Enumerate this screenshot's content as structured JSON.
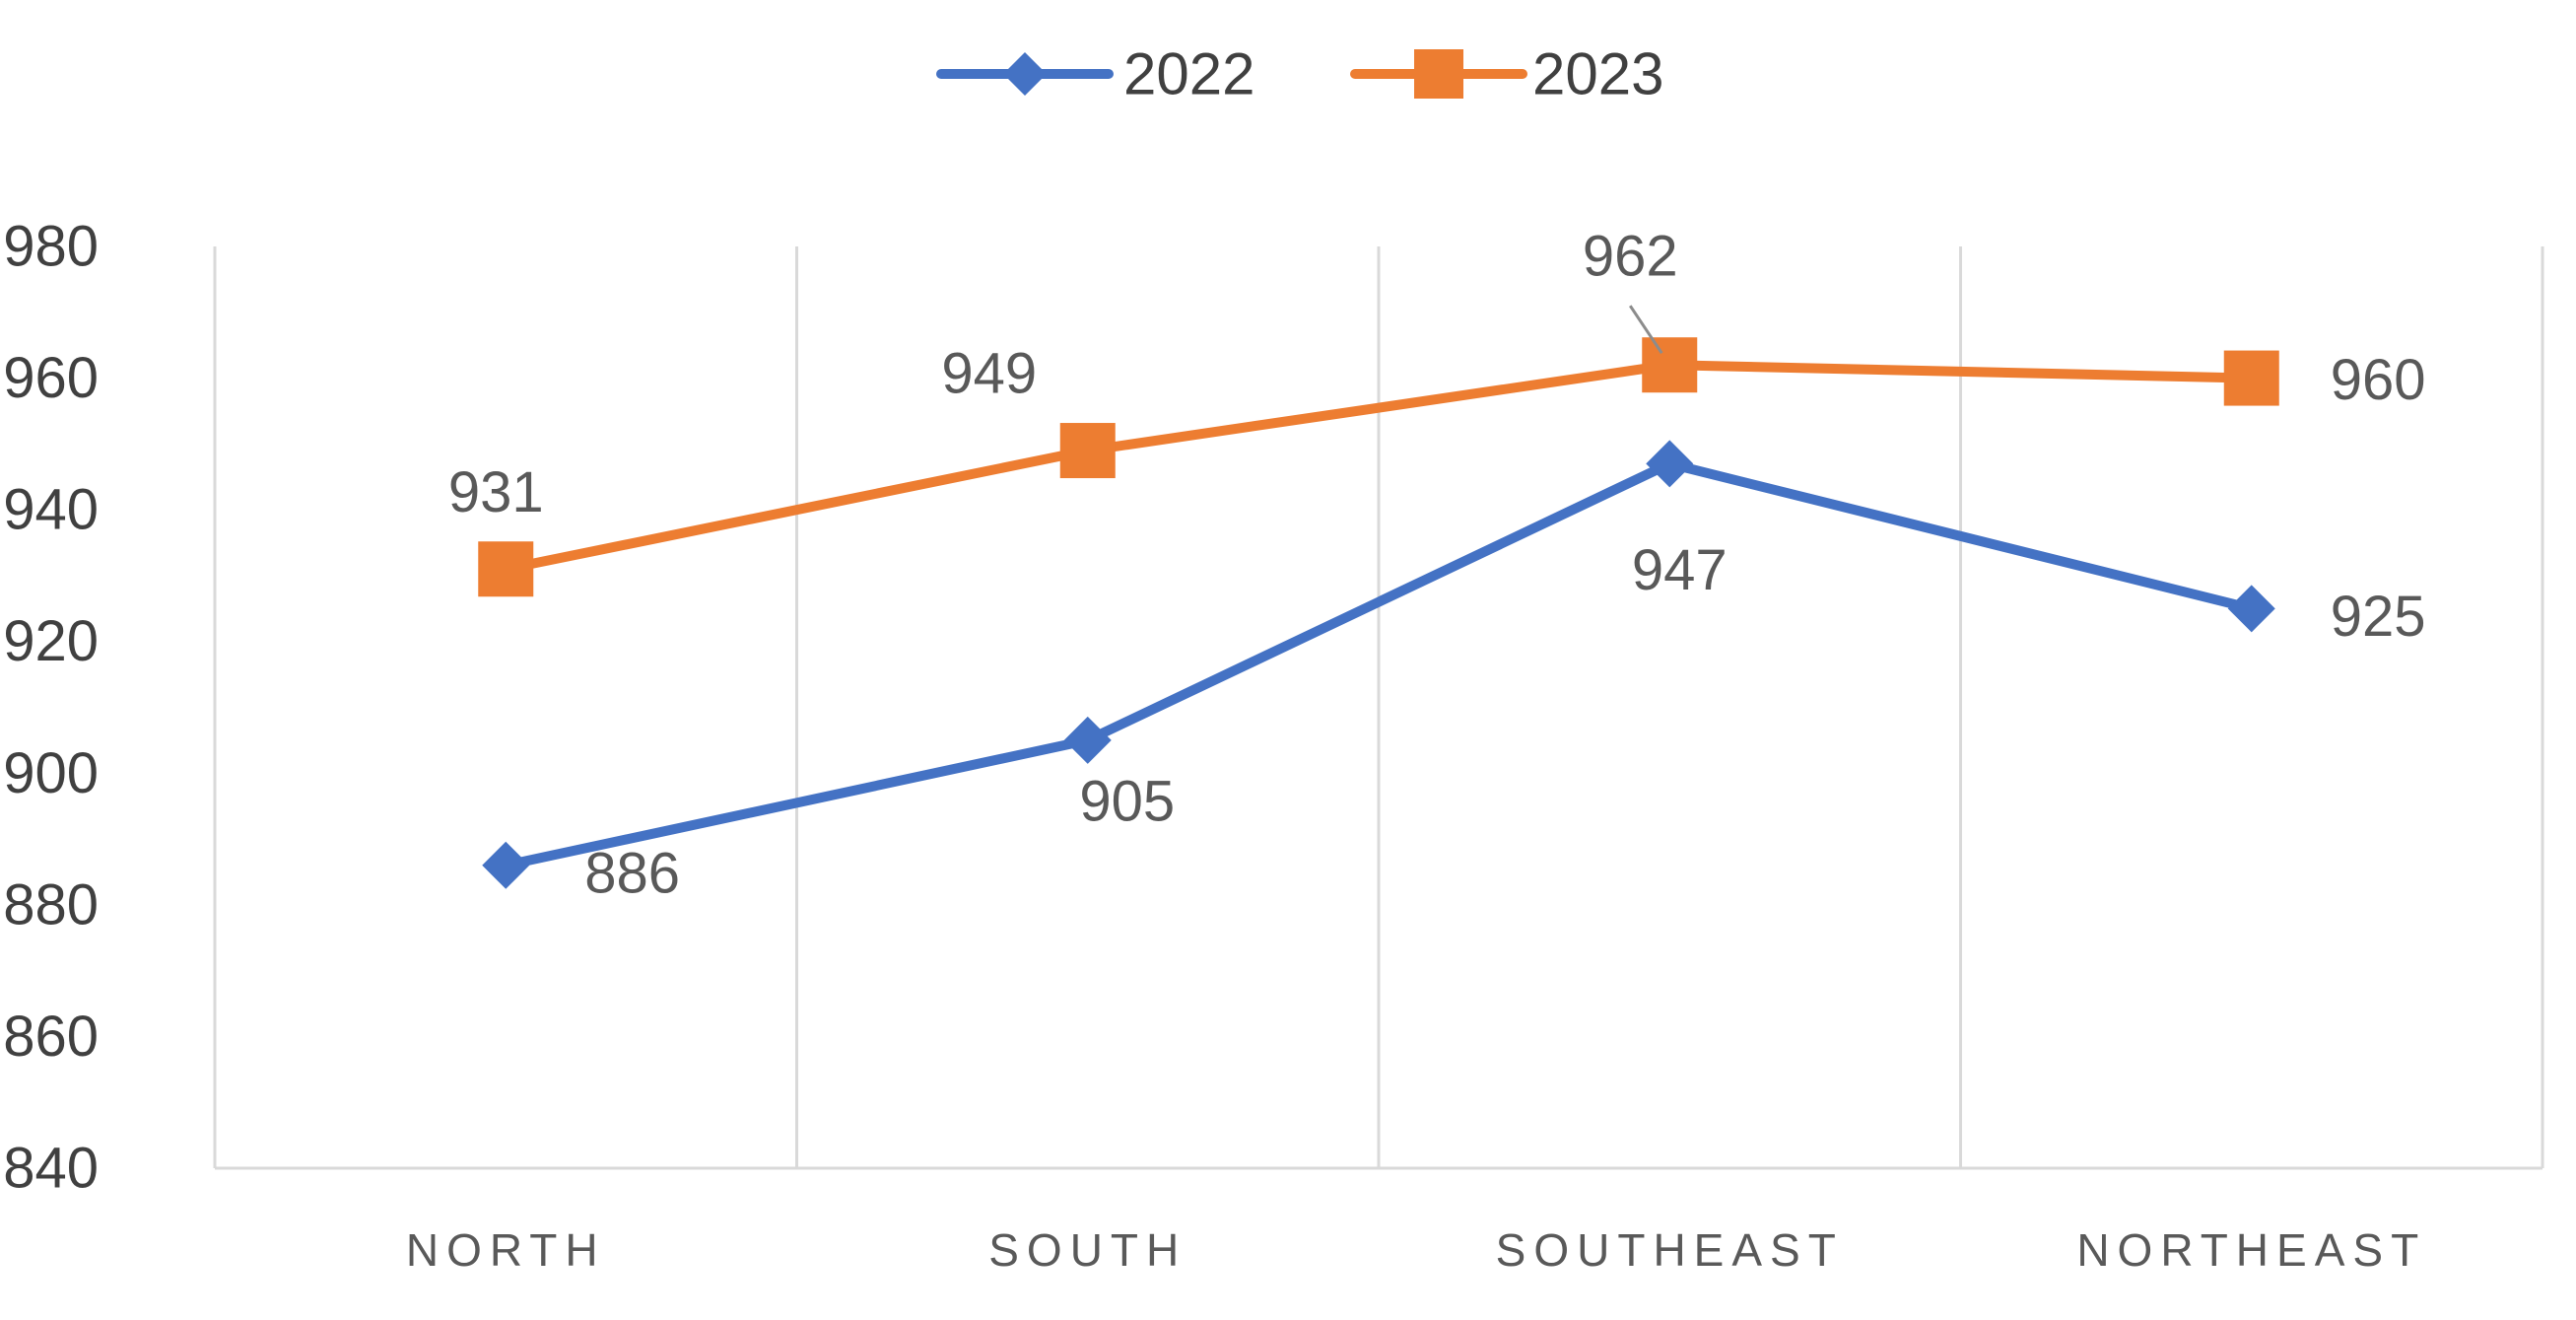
{
  "chart_data": {
    "type": "line",
    "title": "",
    "xlabel": "",
    "ylabel": "",
    "categories": [
      "NORTH",
      "SOUTH",
      "SOUTHEAST",
      "NORTHEAST"
    ],
    "series": [
      {
        "name": "2022",
        "values": [
          886,
          905,
          947,
          925
        ],
        "color": "#4472C4",
        "marker": "diamond"
      },
      {
        "name": "2023",
        "values": [
          931,
          949,
          962,
          960
        ],
        "color": "#ED7D31",
        "marker": "square"
      }
    ],
    "ylim": [
      840,
      980
    ],
    "yticks": [
      840,
      860,
      880,
      900,
      920,
      940,
      960,
      980
    ],
    "grid": "vertical",
    "legend": "top-center",
    "gridline_color": "#D9D9D9",
    "text_color": "#404040"
  }
}
